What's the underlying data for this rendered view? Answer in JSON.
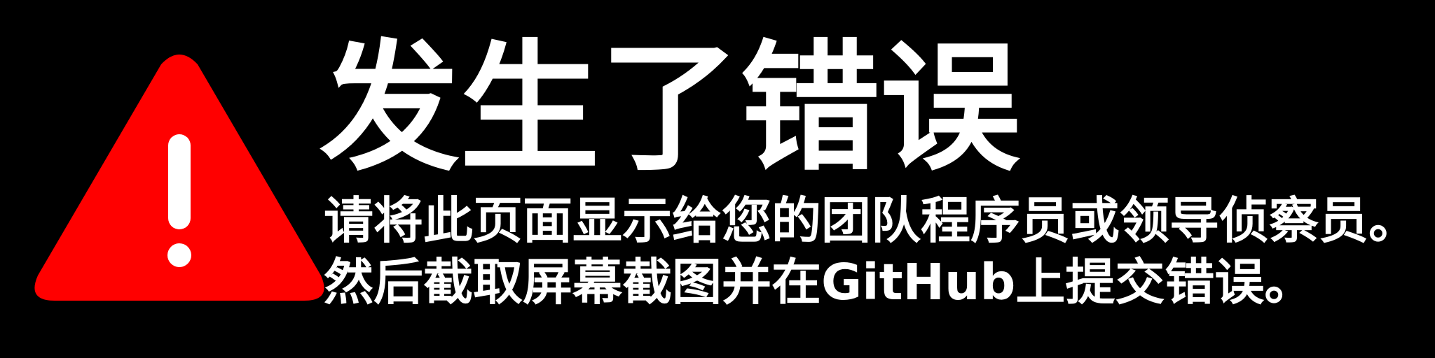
{
  "colors": {
    "background": "#000000",
    "warning": "#ff0000",
    "text": "#ffffff"
  },
  "icon": "warning-triangle-icon",
  "title": "发生了错误",
  "message": "请将此页面显示给您的团队程序员或领导侦察员。然后截取屏幕截图并在GitHub上提交错误。"
}
